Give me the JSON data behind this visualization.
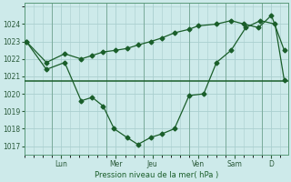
{
  "xlabel": "Pression niveau de la mer( hPa )",
  "background_color": "#cdeaea",
  "grid_color": "#aacfcf",
  "line_color": "#1a5e2a",
  "hline_color": "#1a5e2a",
  "ylim": [
    1016.5,
    1025.2
  ],
  "yticks": [
    1017,
    1018,
    1019,
    1020,
    1021,
    1022,
    1023,
    1024
  ],
  "xlim": [
    0,
    7.2
  ],
  "day_labels": [
    "Lun",
    "Mer",
    "Jeu",
    "Ven",
    "Sam",
    "D"
  ],
  "day_positions": [
    1.0,
    2.5,
    3.5,
    4.75,
    5.75,
    6.75
  ],
  "day_vlines": [
    0.75,
    2.25,
    3.25,
    4.5,
    5.5,
    6.5
  ],
  "hline_y": 1020.75,
  "series_actual_x": [
    0.05,
    0.6,
    1.1,
    1.55,
    1.85,
    2.15,
    2.45,
    2.8,
    3.1,
    3.45,
    3.75,
    4.1,
    4.5,
    4.9,
    5.25,
    5.65,
    6.05,
    6.45,
    6.85,
    7.1
  ],
  "series_actual_y": [
    1023.0,
    1021.4,
    1021.8,
    1019.6,
    1019.8,
    1019.3,
    1018.0,
    1017.5,
    1017.1,
    1017.5,
    1017.7,
    1018.0,
    1019.9,
    1020.0,
    1021.8,
    1022.5,
    1023.8,
    1024.2,
    1024.0,
    1020.8
  ],
  "series_forecast_x": [
    0.05,
    0.6,
    1.1,
    1.55,
    1.85,
    2.15,
    2.5,
    2.8,
    3.1,
    3.45,
    3.75,
    4.1,
    4.5,
    4.75,
    5.25,
    5.65,
    6.0,
    6.4,
    6.75,
    7.1
  ],
  "series_forecast_y": [
    1023.0,
    1021.8,
    1022.3,
    1022.0,
    1022.2,
    1022.4,
    1022.5,
    1022.6,
    1022.8,
    1023.0,
    1023.2,
    1023.5,
    1023.7,
    1023.9,
    1024.0,
    1024.2,
    1024.0,
    1023.8,
    1024.5,
    1022.5
  ]
}
